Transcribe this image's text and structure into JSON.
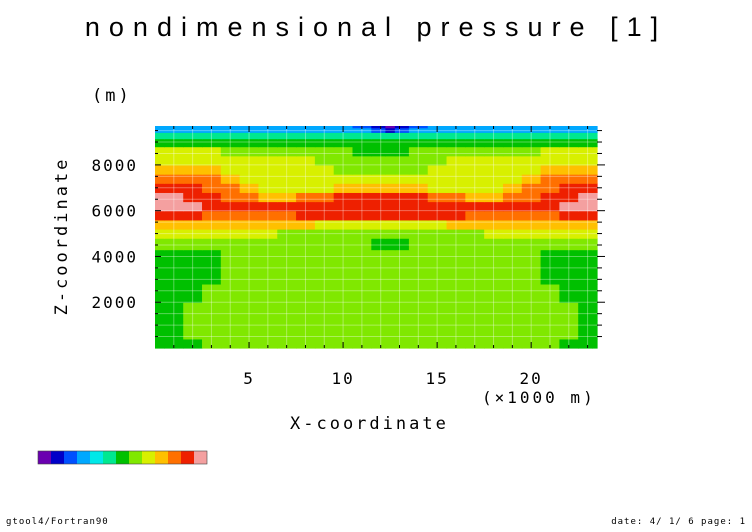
{
  "chart_data": {
    "type": "heatmap",
    "title": "nondimensional pressure [1]",
    "xlabel": "X-coordinate",
    "x_unit": "(×1000 m)",
    "ylabel": "Z-coordinate",
    "y_unit": "(m)",
    "xlim": [
      0,
      23.5
    ],
    "ylim": [
      0,
      9700
    ],
    "x_ticks": [
      5,
      10,
      15,
      20
    ],
    "y_ticks": [
      2000,
      4000,
      6000,
      8000
    ],
    "grid": true,
    "level_colors": [
      "#6a00b0",
      "#0000c8",
      "#0050ff",
      "#00a8ff",
      "#00e8e8",
      "#00e890",
      "#00c000",
      "#80e800",
      "#d8f000",
      "#ffc000",
      "#ff7000",
      "#ee2000",
      "#f4a0a0"
    ],
    "z_rows": [
      0,
      800,
      1600,
      2400,
      3200,
      4000,
      4600,
      5000,
      5400,
      5800,
      6200,
      6600,
      7000,
      7400,
      7800,
      8200,
      8600,
      9000,
      9300,
      9550,
      9700
    ],
    "x_cols": [
      0,
      1,
      2,
      3,
      4,
      5,
      6,
      7,
      8,
      9,
      10,
      11,
      12,
      12.5,
      13,
      14,
      15,
      16,
      17,
      18,
      19,
      20,
      21,
      22,
      23,
      23.5
    ],
    "levels": [
      [
        6,
        6,
        6,
        7,
        7,
        7,
        7,
        7,
        7,
        7,
        7,
        7,
        7,
        7,
        7,
        7,
        7,
        7,
        7,
        7,
        7,
        7,
        7,
        6,
        6,
        6
      ],
      [
        6,
        6,
        7,
        7,
        7,
        7,
        7,
        7,
        7,
        7,
        7,
        7,
        7,
        7,
        7,
        7,
        7,
        7,
        7,
        7,
        7,
        7,
        7,
        7,
        6,
        6
      ],
      [
        6,
        6,
        7,
        7,
        7,
        7,
        7,
        7,
        7,
        7,
        7,
        7,
        7,
        7,
        7,
        7,
        7,
        7,
        7,
        7,
        7,
        7,
        7,
        7,
        6,
        6
      ],
      [
        6,
        6,
        6,
        7,
        7,
        7,
        7,
        7,
        7,
        7,
        7,
        7,
        7,
        7,
        7,
        7,
        7,
        7,
        7,
        7,
        7,
        7,
        7,
        6,
        6,
        6
      ],
      [
        6,
        6,
        6,
        6,
        7,
        7,
        7,
        7,
        7,
        7,
        7,
        7,
        7,
        7,
        7,
        7,
        7,
        7,
        7,
        7,
        7,
        7,
        6,
        6,
        6,
        6
      ],
      [
        6,
        6,
        6,
        6,
        7,
        7,
        7,
        7,
        7,
        7,
        7,
        7,
        7,
        7,
        7,
        7,
        7,
        7,
        7,
        7,
        7,
        7,
        6,
        6,
        6,
        6
      ],
      [
        7,
        7,
        7,
        7,
        7,
        7,
        7,
        7,
        7,
        7,
        7,
        7,
        6,
        6,
        6,
        7,
        7,
        7,
        7,
        7,
        7,
        7,
        7,
        7,
        7,
        7
      ],
      [
        8,
        8,
        8,
        8,
        8,
        8,
        8,
        7,
        7,
        7,
        7,
        7,
        7,
        7,
        7,
        7,
        7,
        7,
        7,
        8,
        8,
        8,
        8,
        8,
        8,
        8
      ],
      [
        9,
        9,
        9,
        9,
        9,
        9,
        9,
        9,
        9,
        8,
        8,
        8,
        8,
        8,
        8,
        8,
        8,
        9,
        9,
        9,
        9,
        9,
        9,
        9,
        9,
        9
      ],
      [
        11,
        11,
        11,
        10,
        10,
        10,
        10,
        10,
        11,
        11,
        11,
        11,
        11,
        11,
        11,
        11,
        11,
        11,
        10,
        10,
        10,
        10,
        10,
        11,
        11,
        11
      ],
      [
        12,
        12,
        12,
        11,
        11,
        11,
        11,
        11,
        11,
        11,
        11,
        11,
        11,
        11,
        11,
        11,
        11,
        11,
        11,
        11,
        11,
        11,
        11,
        12,
        12,
        12
      ],
      [
        12,
        12,
        11,
        11,
        10,
        10,
        9,
        9,
        10,
        10,
        11,
        11,
        11,
        11,
        11,
        11,
        10,
        10,
        9,
        9,
        10,
        10,
        11,
        11,
        12,
        12
      ],
      [
        11,
        11,
        11,
        10,
        10,
        9,
        8,
        8,
        8,
        8,
        9,
        9,
        9,
        9,
        9,
        9,
        8,
        8,
        8,
        8,
        9,
        10,
        10,
        11,
        11,
        11
      ],
      [
        10,
        10,
        10,
        10,
        9,
        8,
        8,
        8,
        8,
        8,
        8,
        8,
        8,
        8,
        8,
        8,
        8,
        8,
        8,
        8,
        8,
        9,
        10,
        10,
        10,
        10
      ],
      [
        9,
        9,
        9,
        9,
        8,
        8,
        8,
        8,
        8,
        8,
        7,
        7,
        7,
        7,
        7,
        7,
        8,
        8,
        8,
        8,
        8,
        8,
        9,
        9,
        9,
        9
      ],
      [
        8,
        8,
        8,
        8,
        8,
        8,
        8,
        8,
        8,
        7,
        7,
        7,
        7,
        7,
        7,
        7,
        7,
        8,
        8,
        8,
        8,
        8,
        8,
        8,
        8,
        8
      ],
      [
        8,
        8,
        8,
        8,
        7,
        7,
        7,
        7,
        7,
        7,
        7,
        6,
        6,
        6,
        6,
        7,
        7,
        7,
        7,
        7,
        7,
        7,
        8,
        8,
        8,
        8
      ],
      [
        6,
        6,
        6,
        6,
        6,
        6,
        6,
        6,
        6,
        6,
        6,
        6,
        6,
        6,
        6,
        6,
        6,
        6,
        6,
        6,
        6,
        6,
        6,
        6,
        6,
        6
      ],
      [
        5,
        5,
        5,
        5,
        5,
        5,
        5,
        5,
        5,
        5,
        5,
        5,
        5,
        5,
        5,
        5,
        5,
        5,
        5,
        5,
        5,
        5,
        5,
        5,
        5,
        5
      ],
      [
        3,
        3,
        3,
        3,
        3,
        3,
        3,
        3,
        3,
        3,
        3,
        3,
        2,
        1,
        2,
        3,
        3,
        3,
        3,
        3,
        3,
        3,
        3,
        3,
        3,
        3
      ],
      [
        3,
        3,
        3,
        3,
        3,
        3,
        3,
        3,
        3,
        3,
        3,
        2,
        1,
        0,
        1,
        2,
        3,
        3,
        3,
        3,
        3,
        3,
        3,
        3,
        3,
        3
      ]
    ]
  },
  "footer": {
    "left": "gtool4/Fortran90",
    "right": "date: 4/ 1/ 6 page: 1"
  }
}
